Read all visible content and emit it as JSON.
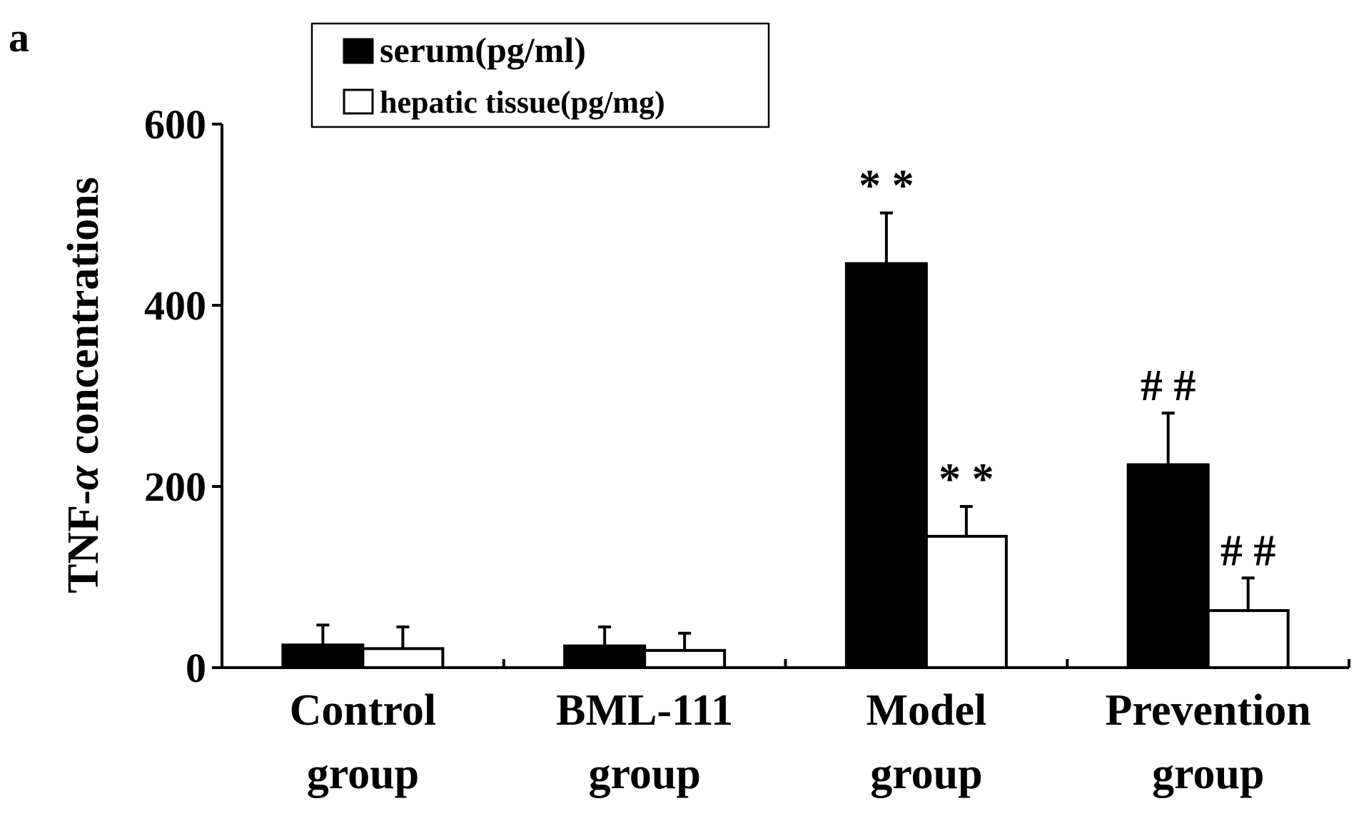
{
  "chart_data": {
    "type": "bar",
    "panel_label": "a",
    "title": "",
    "xlabel": "",
    "ylabel": "TNF-α concentrations",
    "ylabel_parts": {
      "prefix": "TNF-",
      "italic": "α",
      "suffix": " concentrations"
    },
    "ylim": [
      0,
      600
    ],
    "yticks": [
      "0",
      "200",
      "400",
      "600"
    ],
    "ytick_values": [
      0,
      200,
      400,
      600
    ],
    "categories": [
      {
        "line1": "Control",
        "line2": "group"
      },
      {
        "line1": "BML-111",
        "line2": "group"
      },
      {
        "line1": "Model",
        "line2": "group"
      },
      {
        "line1": "Prevention",
        "line2": "group"
      }
    ],
    "series": [
      {
        "name": "serum(pg/ml)",
        "fill": "#000000",
        "values": [
          25,
          24,
          446,
          224
        ],
        "errors": [
          22,
          21,
          56,
          57
        ],
        "significance": [
          "",
          "",
          "**",
          "##"
        ]
      },
      {
        "name": "hepatic tissue(pg/mg)",
        "fill": "#ffffff",
        "values": [
          21,
          19,
          145,
          63
        ],
        "errors": [
          24,
          19,
          33,
          36
        ],
        "significance": [
          "",
          "",
          "**",
          "##"
        ]
      }
    ],
    "legend_position": "top-left",
    "grid": false
  }
}
